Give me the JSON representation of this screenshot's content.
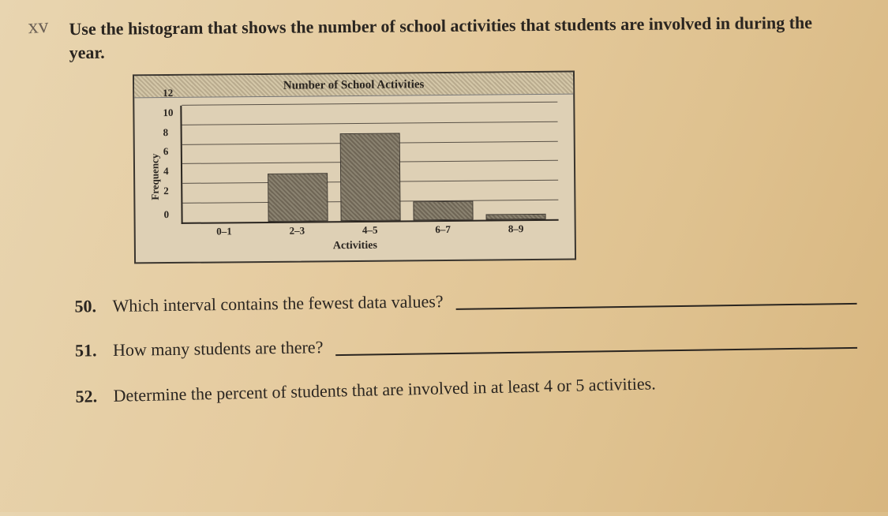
{
  "handwritten_mark": "xv",
  "instruction": "Use the histogram that shows the number of school activities that students are involved in during the year.",
  "chart": {
    "type": "bar",
    "title": "Number of School Activities",
    "y_axis_label": "Frequency",
    "x_axis_label": "Activities",
    "ylim": [
      0,
      12
    ],
    "ytick_step": 2,
    "yticks": [
      0,
      2,
      4,
      6,
      8,
      10,
      12
    ],
    "categories": [
      "0–1",
      "2–3",
      "4–5",
      "6–7",
      "8–9"
    ],
    "values": [
      0,
      5,
      9,
      2,
      0.6
    ],
    "bar_fill": "#6f6656",
    "bar_pattern": "diagonal-hatch",
    "grid_color": "#5a5248",
    "axis_color": "#2a2520",
    "background_color": "#ded0b5",
    "title_fontsize": 15,
    "label_fontsize": 13
  },
  "questions": {
    "q50": {
      "num": "50.",
      "text": "Which interval contains the fewest data values?"
    },
    "q51": {
      "num": "51.",
      "text": "How many students are there?"
    },
    "q52": {
      "num": "52.",
      "text": "Determine the percent of students that are involved in at least 4 or 5 activities."
    }
  }
}
